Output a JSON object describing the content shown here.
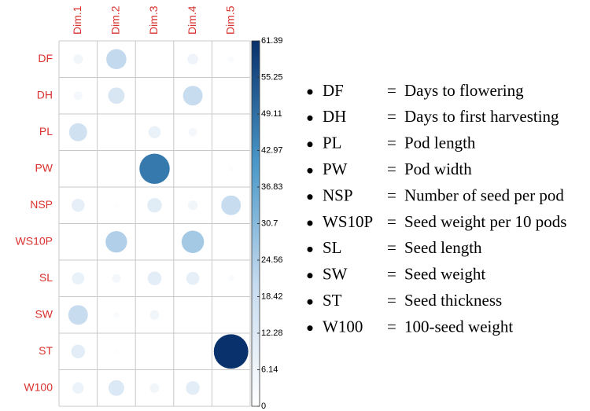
{
  "chart_data": {
    "type": "corrplot",
    "rows": [
      "DF",
      "DH",
      "PL",
      "PW",
      "NSP",
      "WS10P",
      "SL",
      "SW",
      "ST",
      "W100"
    ],
    "columns": [
      "Dim.1",
      "Dim.2",
      "Dim.3",
      "Dim.4",
      "Dim.5"
    ],
    "values": [
      [
        5,
        21,
        0,
        6,
        2
      ],
      [
        4,
        14,
        0.5,
        20,
        0.3
      ],
      [
        17,
        0,
        8,
        4,
        0
      ],
      [
        0.5,
        0,
        47,
        0.3,
        1.5
      ],
      [
        9,
        1,
        11,
        5,
        20
      ],
      [
        0,
        24,
        0.5,
        26,
        0
      ],
      [
        8,
        4,
        10,
        9,
        2
      ],
      [
        20,
        2,
        5,
        0.3,
        0.5
      ],
      [
        10,
        1,
        0,
        0,
        61
      ],
      [
        7,
        13,
        5,
        10,
        0
      ]
    ],
    "clim": [
      0,
      61.39
    ],
    "colorbar_ticks": [
      0,
      6.14,
      12.28,
      18.42,
      24.56,
      30.7,
      36.83,
      42.97,
      49.11,
      55.25,
      61.39
    ],
    "colors": [
      "#ffffff",
      "#c6dbef",
      "#4a98c9",
      "#08306b"
    ],
    "label_color": "#d9322e",
    "legend_separator": "=",
    "legend_items": [
      {
        "abbr": "DF",
        "desc": "Days to flowering"
      },
      {
        "abbr": "DH",
        "desc": "Days to first harvesting"
      },
      {
        "abbr": "PL",
        "desc": "Pod length"
      },
      {
        "abbr": "PW",
        "desc": "Pod width"
      },
      {
        "abbr": "NSP",
        "desc": "Number of seed per pod"
      },
      {
        "abbr": "WS10P",
        "desc": "Seed weight per 10 pods"
      },
      {
        "abbr": "SL",
        "desc": "Seed length"
      },
      {
        "abbr": "SW",
        "desc": "Seed weight"
      },
      {
        "abbr": "ST",
        "desc": "Seed thickness"
      },
      {
        "abbr": "W100",
        "desc": "100-seed weight"
      }
    ]
  }
}
